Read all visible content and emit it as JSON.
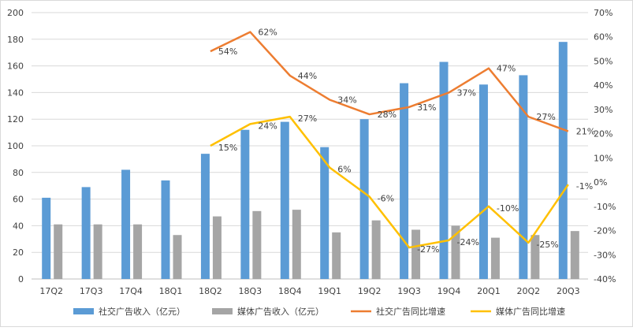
{
  "chart_data": {
    "type": "bar",
    "categories": [
      "17Q2",
      "17Q3",
      "17Q4",
      "18Q1",
      "18Q2",
      "18Q3",
      "18Q4",
      "19Q1",
      "19Q2",
      "19Q3",
      "19Q4",
      "20Q1",
      "20Q2",
      "20Q3"
    ],
    "series": [
      {
        "name": "社交广告收入（亿元）",
        "type": "bar",
        "axis": "left",
        "color": "#5b9bd5",
        "values": [
          61,
          69,
          82,
          74,
          94,
          112,
          118,
          99,
          120,
          147,
          163,
          146,
          153,
          178
        ]
      },
      {
        "name": "媒体广告收入（亿元）",
        "type": "bar",
        "axis": "left",
        "color": "#a5a5a5",
        "values": [
          41,
          41,
          41,
          33,
          47,
          51,
          52,
          35,
          44,
          37,
          40,
          31,
          33,
          36
        ]
      },
      {
        "name": "社交广告同比增速",
        "type": "line",
        "axis": "right",
        "color": "#ed7d31",
        "values": [
          null,
          null,
          null,
          null,
          54,
          62,
          44,
          34,
          28,
          31,
          37,
          47,
          27,
          21
        ],
        "labels": [
          "",
          "",
          "",
          "",
          "54%",
          "62%",
          "44%",
          "34%",
          "28%",
          "31%",
          "37%",
          "47%",
          "27%",
          "21%"
        ]
      },
      {
        "name": "媒体广告同比增速",
        "type": "line",
        "axis": "right",
        "color": "#ffc000",
        "values": [
          null,
          null,
          null,
          null,
          15,
          24,
          27,
          6,
          -6,
          -27,
          -24,
          -10,
          -25,
          -1
        ],
        "labels": [
          "",
          "",
          "",
          "",
          "15%",
          "24%",
          "27%",
          "6%",
          "-6%",
          "-27%",
          "-24%",
          "-10%",
          "-25%",
          "-1%"
        ]
      }
    ],
    "y_left": {
      "range": [
        0,
        200
      ],
      "ticks": [
        "0",
        "20",
        "40",
        "60",
        "80",
        "100",
        "120",
        "140",
        "160",
        "180",
        "200"
      ]
    },
    "y_right": {
      "range": [
        -40,
        70
      ],
      "ticks": [
        "-40%",
        "-30%",
        "-20%",
        "-10%",
        "0%",
        "10%",
        "20%",
        "30%",
        "40%",
        "50%",
        "60%",
        "70%"
      ]
    },
    "grid": true,
    "legend_position": "bottom"
  }
}
